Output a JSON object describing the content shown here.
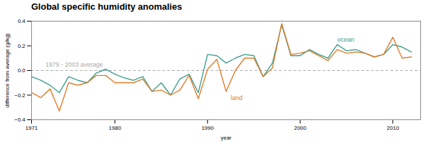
{
  "chart_data": {
    "type": "line",
    "title": "Global specific humidity anomalies",
    "xlabel": "year",
    "ylabel": "difference from average (g/kg)",
    "x": [
      1971,
      1972,
      1973,
      1974,
      1975,
      1976,
      1977,
      1978,
      1979,
      1980,
      1981,
      1982,
      1983,
      1984,
      1985,
      1986,
      1987,
      1988,
      1989,
      1990,
      1991,
      1992,
      1993,
      1994,
      1995,
      1996,
      1997,
      1998,
      1999,
      2000,
      2001,
      2002,
      2003,
      2004,
      2005,
      2006,
      2007,
      2008,
      2009,
      2010,
      2011,
      2012
    ],
    "series": [
      {
        "name": "ocean",
        "color": "#3a9e8c",
        "values": [
          -0.05,
          -0.08,
          -0.12,
          -0.18,
          -0.05,
          -0.08,
          -0.1,
          -0.02,
          0.01,
          -0.03,
          -0.06,
          -0.08,
          -0.05,
          -0.17,
          -0.1,
          -0.2,
          -0.07,
          -0.03,
          -0.18,
          0.13,
          0.12,
          0.06,
          0.1,
          0.13,
          0.12,
          -0.05,
          0.06,
          0.37,
          0.12,
          0.12,
          0.17,
          0.13,
          0.1,
          0.21,
          0.16,
          0.17,
          0.14,
          0.11,
          0.13,
          0.21,
          0.19,
          0.15
        ]
      },
      {
        "name": "land",
        "color": "#e07b28",
        "values": [
          -0.18,
          -0.22,
          -0.15,
          -0.33,
          -0.1,
          -0.12,
          -0.1,
          -0.04,
          -0.04,
          -0.1,
          -0.1,
          -0.1,
          -0.07,
          -0.17,
          -0.16,
          -0.2,
          -0.16,
          -0.04,
          -0.23,
          0.01,
          0.09,
          -0.17,
          0.0,
          0.1,
          0.1,
          -0.05,
          0.02,
          0.38,
          0.13,
          0.14,
          0.16,
          0.12,
          0.08,
          0.17,
          0.14,
          0.15,
          0.14,
          0.11,
          0.13,
          0.27,
          0.1,
          0.11
        ]
      }
    ],
    "xlim": [
      1971,
      2013
    ],
    "xticks": [
      1971,
      1980,
      1990,
      2000,
      2010
    ],
    "ylim": [
      -0.4,
      0.4
    ],
    "yticks": [
      -0.4,
      -0.2,
      {
        "value": 0,
        "label": "0.0"
      },
      0.2,
      0.4
    ],
    "grid": false,
    "reference_lines": [
      {
        "y": 0,
        "color": "#aaaaaa",
        "line_style": "dashed"
      }
    ],
    "annotations": [
      {
        "text": "1979 - 2003 average",
        "x": 1972.5,
        "y": 0.03,
        "color": "#aaaaaa"
      },
      {
        "text": "ocean",
        "x": 2004.0,
        "y": 0.235,
        "color": "#3a9e8c"
      },
      {
        "text": "land",
        "x": 1992.5,
        "y": -0.205,
        "color": "#e07b28"
      }
    ]
  }
}
